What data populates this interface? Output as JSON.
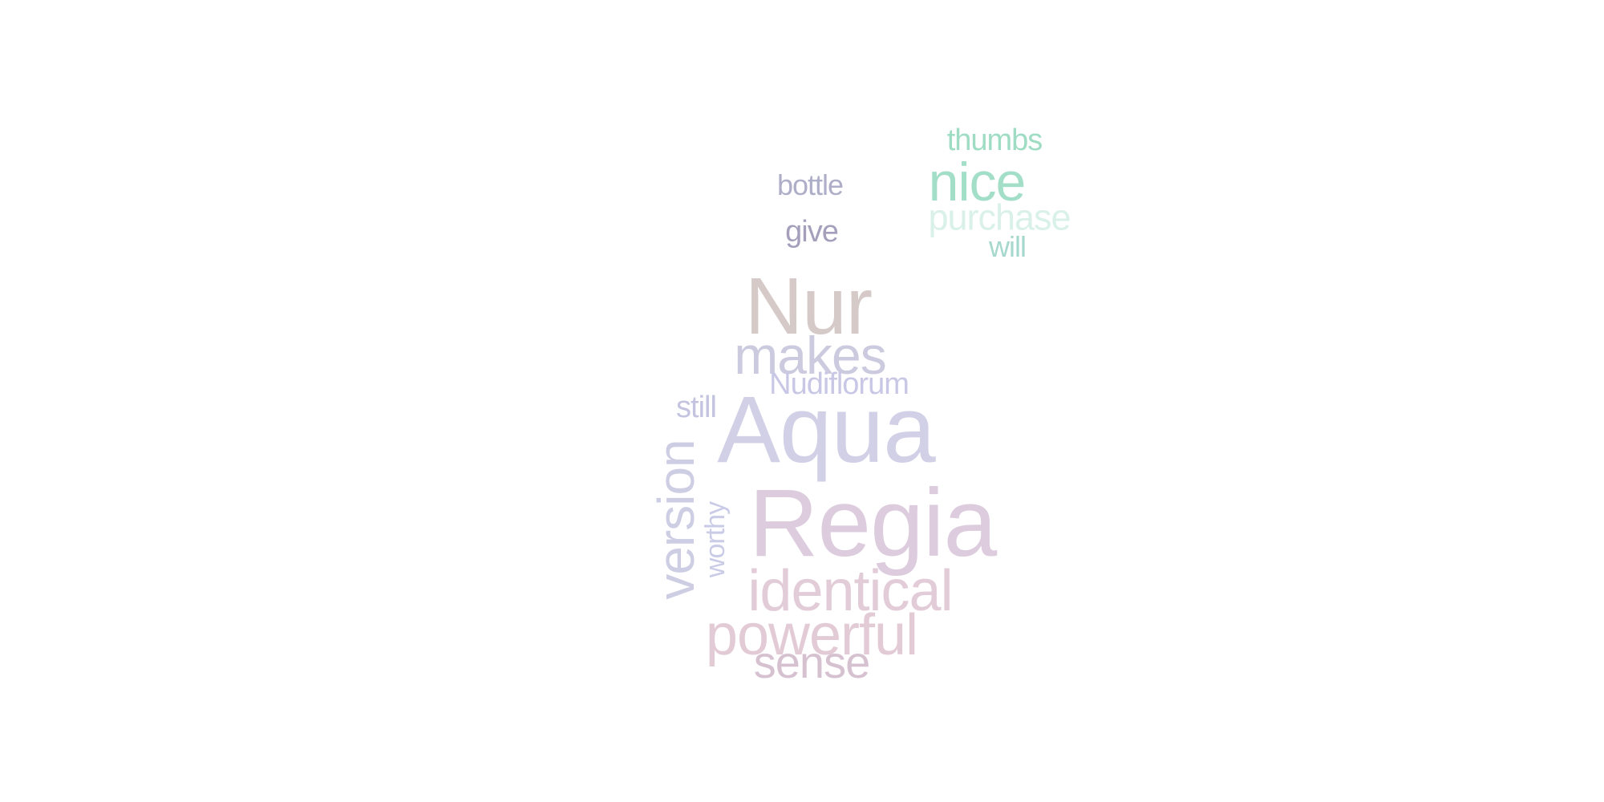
{
  "words": {
    "thumbs": {
      "text": "thumbs",
      "color": "#9fdcc4"
    },
    "nice": {
      "text": "nice",
      "color": "#a3dfc8"
    },
    "bottle": {
      "text": "bottle",
      "color": "#aeaec8"
    },
    "purchase": {
      "text": "purchase",
      "color": "#d9f1e8"
    },
    "give": {
      "text": "give",
      "color": "#a59fbc"
    },
    "will": {
      "text": "will",
      "color": "#a6d8cd"
    },
    "nur": {
      "text": "Nur",
      "color": "#d6cac8"
    },
    "makes": {
      "text": "makes",
      "color": "#cbcadf"
    },
    "nudiflorum": {
      "text": "Nudiflorum",
      "color": "#c8c8e6"
    },
    "still": {
      "text": "still",
      "color": "#c4c4e0"
    },
    "aqua": {
      "text": "Aqua",
      "color": "#d2d0e6"
    },
    "version": {
      "text": "version",
      "color": "#cdcde4"
    },
    "worthy": {
      "text": "worthy",
      "color": "#c9cbe7"
    },
    "regia": {
      "text": "Regia",
      "color": "#dcccde"
    },
    "identical": {
      "text": "identical",
      "color": "#e2ccd8"
    },
    "powerful": {
      "text": "powerful",
      "color": "#e3cbd6"
    },
    "sense": {
      "text": "sense",
      "color": "#d6c1d1"
    }
  }
}
